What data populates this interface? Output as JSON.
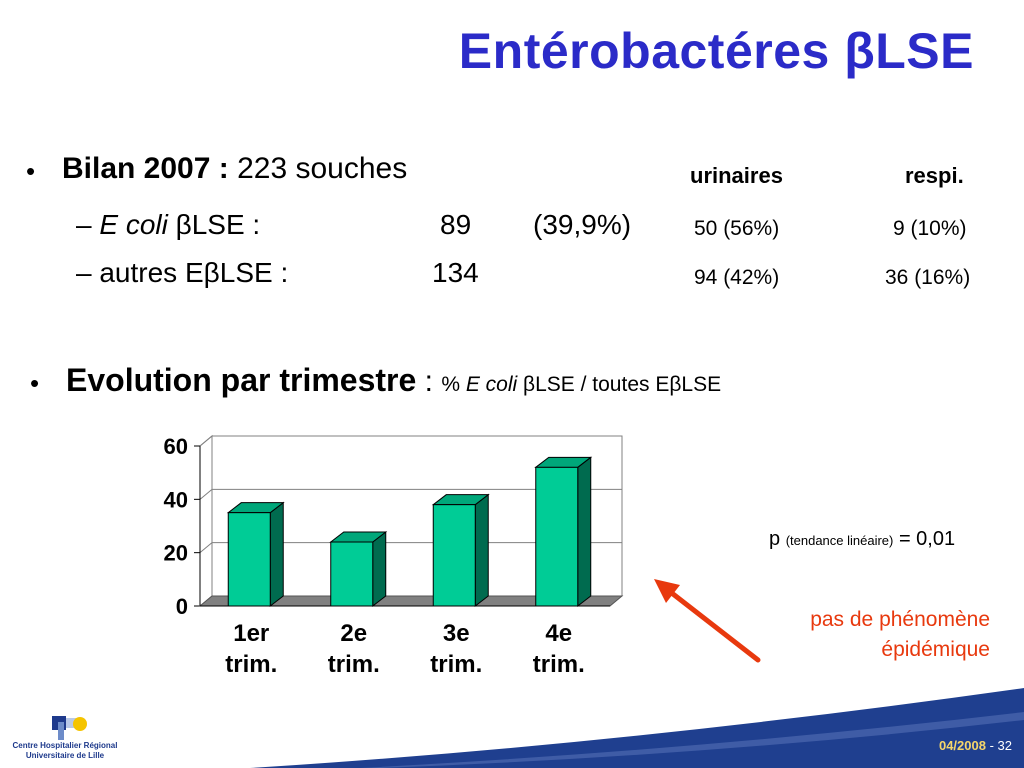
{
  "title": "Entérobactéres βLSE",
  "bilan": {
    "bullet": "•",
    "label": "Bilan 2007 :",
    "value": "223 souches",
    "col_headers": [
      "urinaires",
      "respi."
    ],
    "rows": [
      {
        "dash": "–",
        "name_italic": "E coli",
        "name_rest": " βLSE :",
        "count": "89",
        "pct": "(39,9%)",
        "urinaires": "50 (56%)",
        "respi": "9 (10%)"
      },
      {
        "dash": "–",
        "name_italic": "",
        "name_rest": "autres EβLSE :",
        "count": "134",
        "pct": "",
        "urinaires": "94 (42%)",
        "respi": "36 (16%)"
      }
    ]
  },
  "evolution": {
    "bullet": "•",
    "label": "Evolution par trimestre",
    "colon": " : ",
    "pct": "% ",
    "ecoli": "E coli",
    "rest": " βLSE / toutes EβLSE"
  },
  "p_text": {
    "p": "p",
    "paren": "(tendance linéaire)",
    "eq": "= 0,01"
  },
  "note": {
    "line1": "pas de phénomène",
    "line2": "épidémique"
  },
  "footer": {
    "org_line1": "Centre Hospitalier Régional",
    "org_line2": "Universitaire de Lille",
    "date": "04/2008",
    "sep": " - ",
    "page": "32"
  },
  "colors": {
    "title": "#2b2bc8",
    "bar_front": "#00cc96",
    "bar_side": "#006b4f",
    "bar_top": "#00a77a",
    "note": "#e8390e",
    "band": "#1f3f8f"
  },
  "chart_data": {
    "type": "bar",
    "categories": [
      [
        "1er",
        "trim."
      ],
      [
        "2e",
        "trim."
      ],
      [
        "3e",
        "trim."
      ],
      [
        "4e",
        "trim."
      ]
    ],
    "values": [
      35,
      24,
      38,
      52
    ],
    "ylim": [
      0,
      60
    ],
    "yticks": [
      "0",
      "20",
      "40",
      "60"
    ],
    "grid": true
  }
}
